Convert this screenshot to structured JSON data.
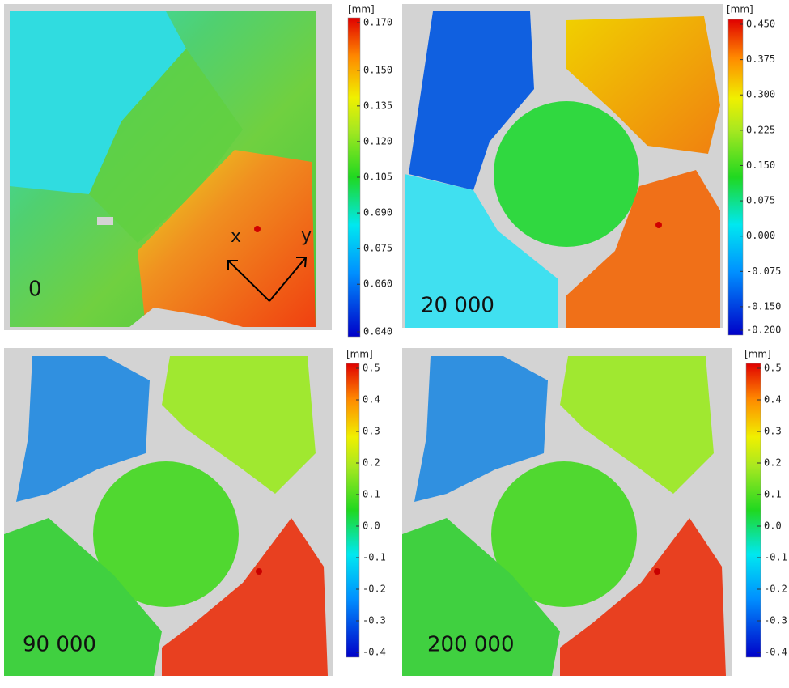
{
  "panels": [
    {
      "label": "0",
      "unit": "[mm]",
      "arrow_labels": [
        "x",
        "y"
      ],
      "colorbar": {
        "lim": [
          0.04,
          0.17
        ],
        "ticks": [
          {
            "value": 0.17,
            "label": "0.170"
          },
          {
            "value": 0.15,
            "label": "0.150"
          },
          0.135,
          {
            "value": 0.12,
            "label": "0.120"
          },
          0.105,
          {
            "value": 0.09,
            "label": "0.090"
          },
          0.075,
          {
            "value": 0.06,
            "label": "0.060"
          },
          {
            "value": 0.04,
            "label": "0.040"
          }
        ]
      }
    },
    {
      "label": "20 000",
      "unit": "[mm]",
      "colorbar": {
        "lim": [
          -0.2,
          0.45
        ],
        "ticks": [
          {
            "value": 0.45,
            "label": "0.450"
          },
          0.375,
          {
            "value": 0.3,
            "label": "0.300"
          },
          0.225,
          {
            "value": 0.15,
            "label": "0.150"
          },
          0.075,
          {
            "value": 0,
            "label": "0.000"
          },
          -0.075,
          {
            "value": -0.15,
            "label": "-0.150"
          },
          {
            "value": -0.2,
            "label": "-0.200"
          }
        ]
      }
    },
    {
      "label": "90 000",
      "unit": "[mm]",
      "colorbar": {
        "lim": [
          -0.4,
          0.5
        ],
        "ticks": [
          0.5,
          0.4,
          0.3,
          0.2,
          0.1,
          {
            "value": 0,
            "label": "0.0"
          },
          -0.1,
          -0.2,
          -0.3,
          -0.4
        ]
      }
    },
    {
      "label": "200 000",
      "unit": "[mm]",
      "colorbar": {
        "lim": [
          -0.4,
          0.5
        ],
        "ticks": [
          0.5,
          0.4,
          0.3,
          0.2,
          0.1,
          {
            "value": 0,
            "label": "0.0"
          },
          -0.1,
          -0.2,
          -0.3,
          -0.4
        ]
      }
    }
  ]
}
